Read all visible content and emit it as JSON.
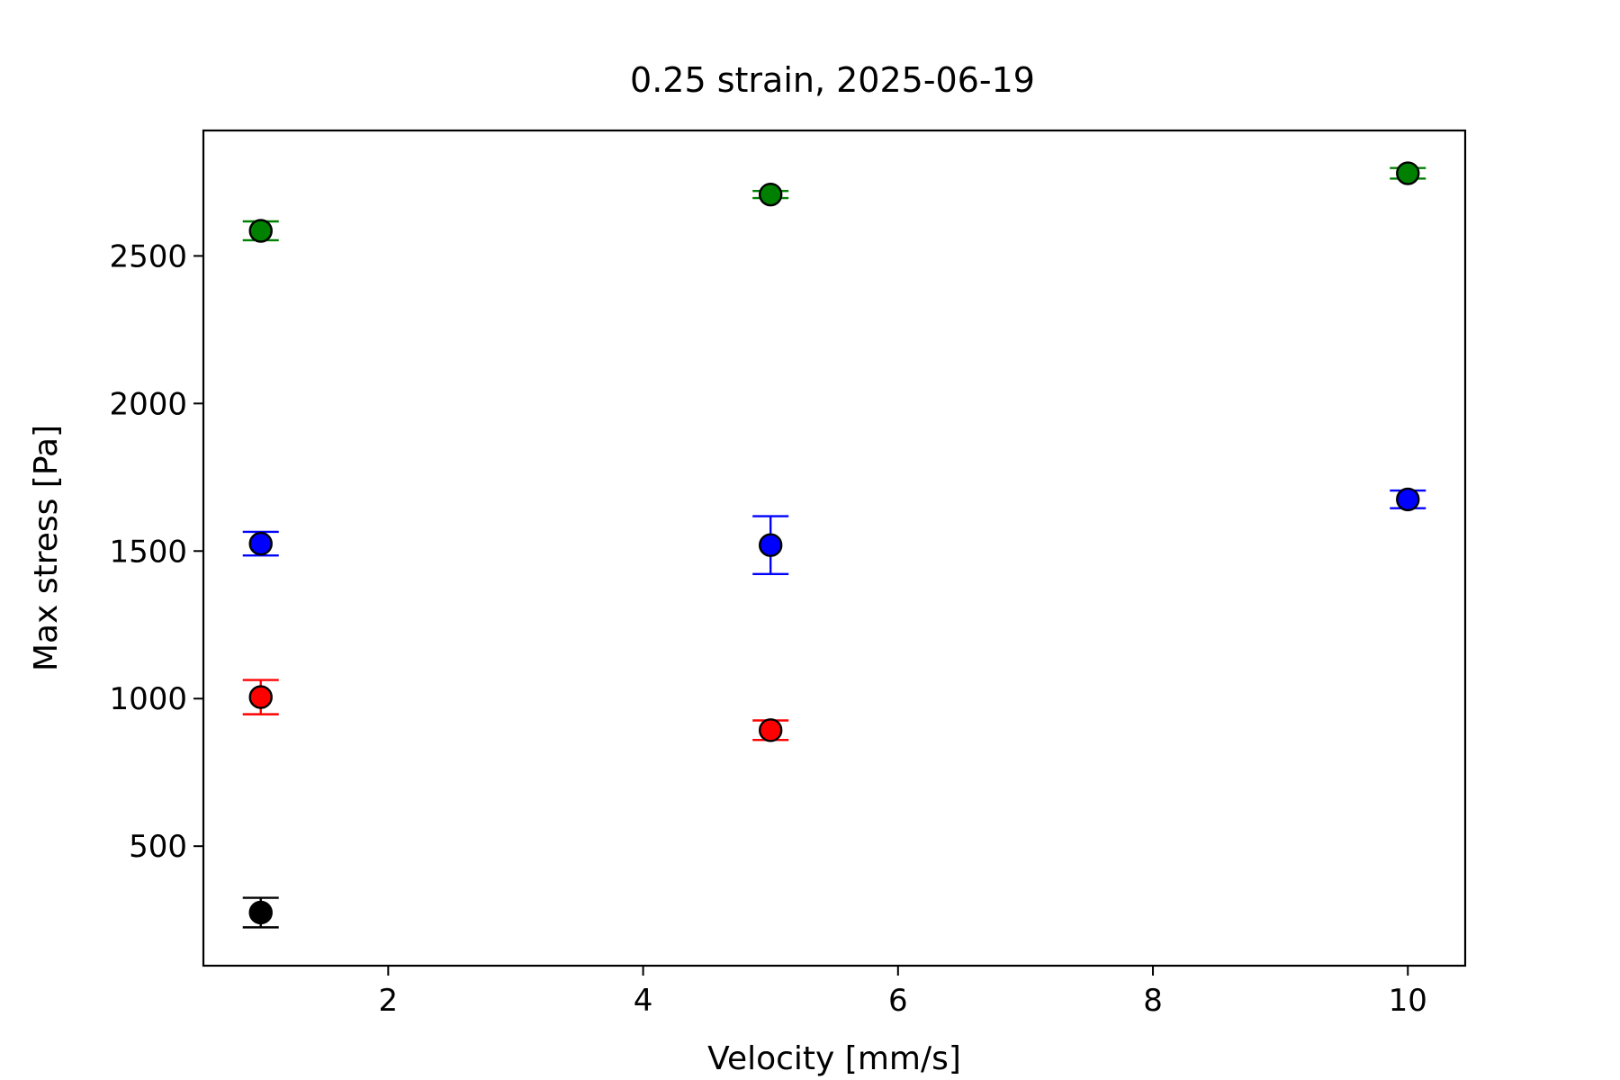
{
  "chart_data": {
    "type": "scatter",
    "title": "0.25 strain, 2025-06-19",
    "xlabel": "Velocity [mm/s]",
    "ylabel": "Max stress [Pa]",
    "xlim": [
      0.55,
      10.45
    ],
    "ylim": [
      95,
      2925
    ],
    "xticks": [
      2,
      4,
      6,
      8,
      10
    ],
    "yticks": [
      500,
      1000,
      1500,
      2000,
      2500
    ],
    "grid": false,
    "legend": null,
    "series": [
      {
        "color": "#008000",
        "points": [
          {
            "x": 1,
            "y": 2585,
            "err": 32
          },
          {
            "x": 5,
            "y": 2708,
            "err": 12
          },
          {
            "x": 10,
            "y": 2780,
            "err": 18
          }
        ]
      },
      {
        "color": "#0000ff",
        "points": [
          {
            "x": 1,
            "y": 1525,
            "err": 40
          },
          {
            "x": 5,
            "y": 1520,
            "err": 98
          },
          {
            "x": 10,
            "y": 1675,
            "err": 30
          }
        ]
      },
      {
        "color": "#ff0000",
        "points": [
          {
            "x": 1,
            "y": 1005,
            "err": 58
          },
          {
            "x": 5,
            "y": 893,
            "err": 33
          }
        ]
      },
      {
        "color": "#000000",
        "points": [
          {
            "x": 1,
            "y": 275,
            "err": 50
          }
        ]
      }
    ]
  }
}
